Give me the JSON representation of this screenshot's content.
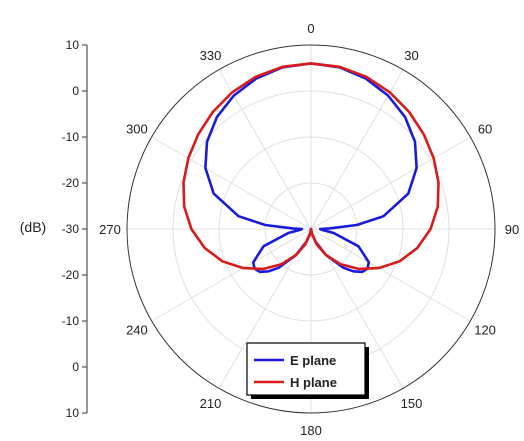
{
  "chart_data": {
    "type": "polar-line",
    "ylabel": "(dB)",
    "r_range": [
      -30,
      10
    ],
    "r_ticks_upper": [
      "10",
      "0",
      "-10",
      "-20",
      "-30"
    ],
    "r_ticks_lower": [
      "-20",
      "-10",
      "0",
      "10"
    ],
    "angle_labels": [
      "0",
      "30",
      "60",
      "90",
      "120",
      "150",
      "180",
      "210",
      "240",
      "270",
      "300",
      "330"
    ],
    "grid": true,
    "legend": {
      "position": "bottom-center"
    },
    "series": [
      {
        "name": "E plane",
        "color": "#1a1adc",
        "theta": [
          0,
          10,
          20,
          30,
          40,
          50,
          60,
          70,
          80,
          85,
          88,
          90,
          95,
          100,
          110,
          120,
          125,
          130,
          135,
          140,
          150,
          160,
          170,
          178,
          180,
          182,
          190,
          200,
          210,
          220,
          225,
          230,
          235,
          240,
          250,
          260,
          265,
          270,
          272,
          275,
          280,
          290,
          300,
          310,
          320,
          330,
          340,
          350,
          360
        ],
        "r": [
          6,
          5.7,
          4.8,
          3.5,
          1.8,
          -0.5,
          -3.5,
          -7.5,
          -14,
          -20,
          -26,
          -28,
          -27.5,
          -25,
          -19,
          -15.5,
          -15,
          -15.5,
          -17,
          -19,
          -23.5,
          -27,
          -29,
          -30,
          -30,
          -30,
          -29,
          -27,
          -23.5,
          -19,
          -17,
          -15.5,
          -15,
          -15.5,
          -19,
          -25,
          -27.5,
          -28,
          -26,
          -20,
          -14,
          -7.5,
          -3.5,
          -0.5,
          1.8,
          3.5,
          4.8,
          5.7,
          6
        ]
      },
      {
        "name": "H plane",
        "color": "#d81b1b",
        "theta": [
          0,
          10,
          20,
          30,
          40,
          50,
          60,
          70,
          80,
          90,
          100,
          110,
          120,
          130,
          140,
          150,
          160,
          170,
          175,
          180,
          185,
          190,
          200,
          210,
          220,
          230,
          240,
          250,
          260,
          270,
          280,
          290,
          300,
          310,
          320,
          330,
          340,
          350,
          360
        ],
        "r": [
          6,
          5.8,
          5.2,
          4.3,
          3.2,
          2.0,
          0.8,
          -0.5,
          -2,
          -4,
          -6.5,
          -9.5,
          -13,
          -16.5,
          -20,
          -23.5,
          -26.5,
          -29,
          -29.8,
          -30,
          -29.8,
          -29,
          -26.5,
          -23.5,
          -20,
          -16.5,
          -13,
          -9.5,
          -6.5,
          -4,
          -2,
          -0.5,
          0.8,
          2.0,
          3.2,
          4.3,
          5.2,
          5.8,
          6
        ]
      }
    ]
  }
}
